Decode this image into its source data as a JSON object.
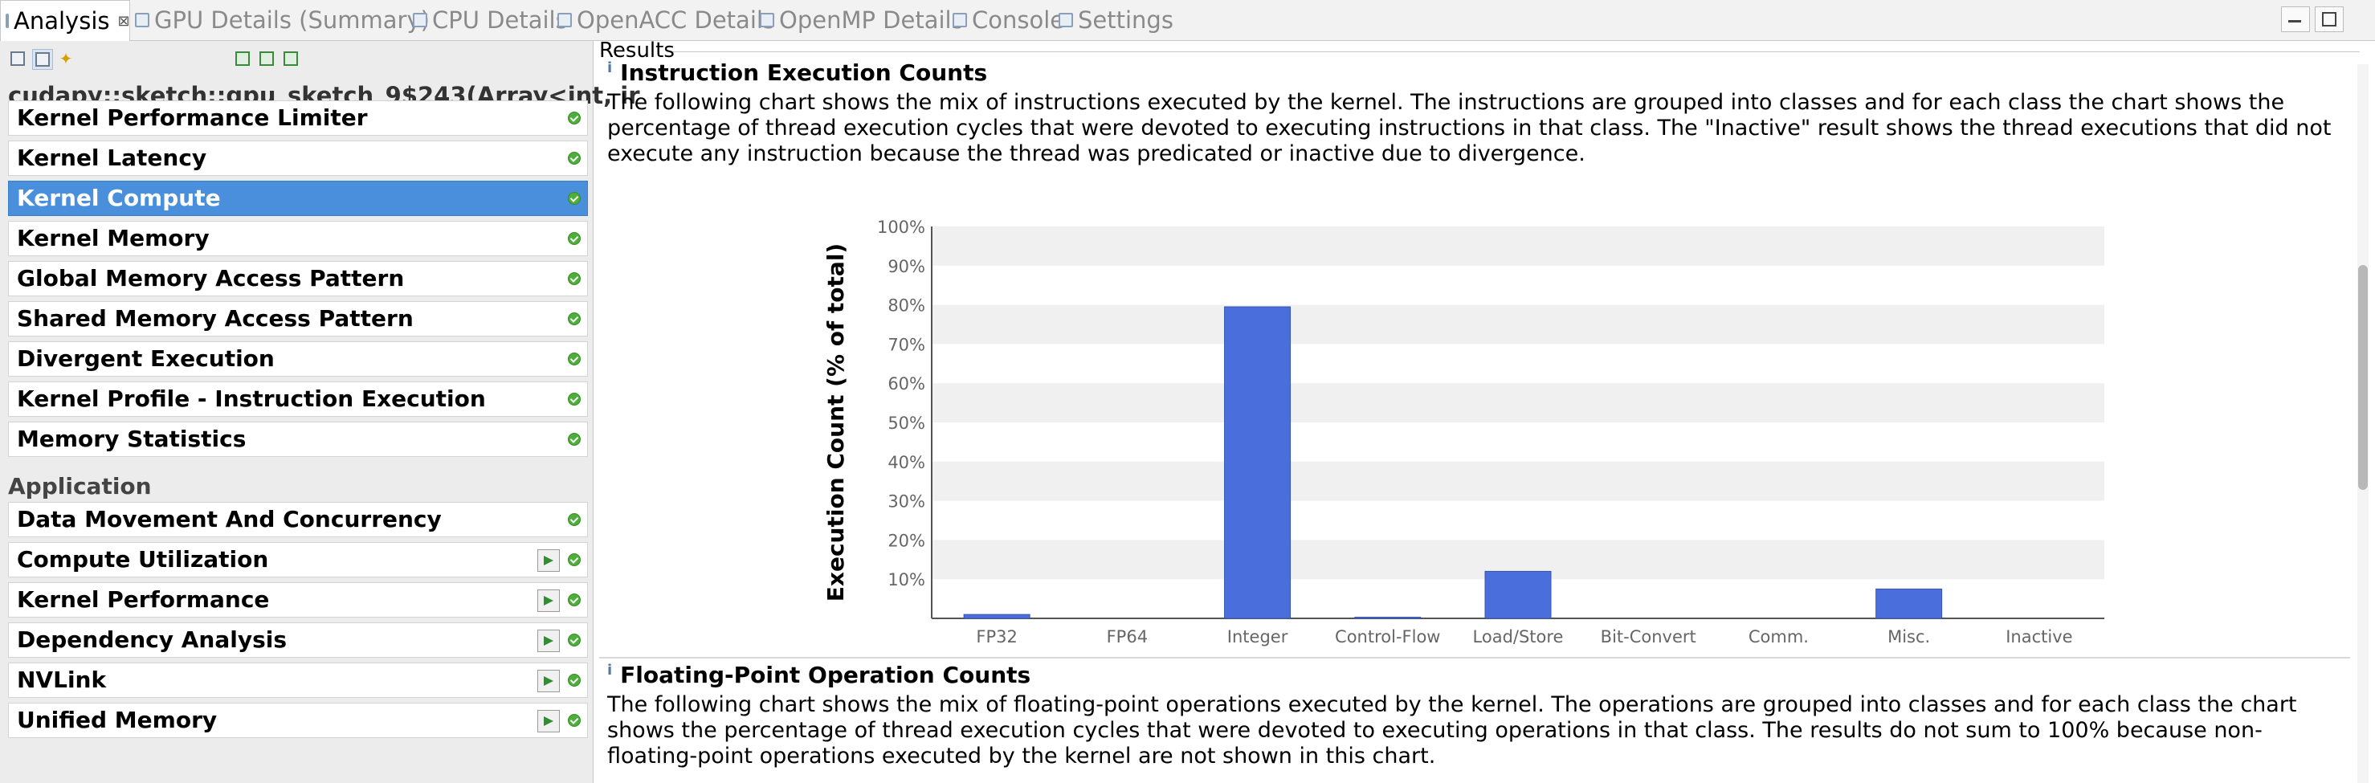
{
  "tabs": [
    {
      "label": "Analysis",
      "active": true,
      "close": "⊠"
    },
    {
      "label": "GPU Details (Summary)",
      "active": false
    },
    {
      "label": "CPU Details",
      "active": false
    },
    {
      "label": "OpenACC Details",
      "active": false
    },
    {
      "label": "OpenMP Details",
      "active": false
    },
    {
      "label": "Console",
      "active": false
    },
    {
      "label": "Settings",
      "active": false
    }
  ],
  "left": {
    "kernel_title": "cudapy::sketch::gpu_sketch_9$243(Array<int, ir",
    "kernel_items": [
      {
        "label": "Kernel Performance Limiter",
        "selected": false
      },
      {
        "label": "Kernel Latency",
        "selected": false
      },
      {
        "label": "Kernel Compute",
        "selected": true
      },
      {
        "label": "Kernel Memory",
        "selected": false
      },
      {
        "label": "Global Memory Access Pattern",
        "selected": false
      },
      {
        "label": "Shared Memory Access Pattern",
        "selected": false
      },
      {
        "label": "Divergent Execution",
        "selected": false
      },
      {
        "label": "Kernel Profile - Instruction Execution",
        "selected": false
      },
      {
        "label": "Memory Statistics",
        "selected": false
      }
    ],
    "application_header": "Application",
    "application_items": [
      {
        "label": "Data Movement And Concurrency",
        "run_button": false
      },
      {
        "label": "Compute Utilization",
        "run_button": true
      },
      {
        "label": "Kernel Performance",
        "run_button": true
      },
      {
        "label": "Dependency Analysis",
        "run_button": true
      },
      {
        "label": "NVLink",
        "run_button": true
      },
      {
        "label": "Unified Memory",
        "run_button": true
      }
    ]
  },
  "results": {
    "label": "Results",
    "sections": [
      {
        "title": "Instruction Execution Counts",
        "description": "The following chart shows the mix of instructions executed by the kernel. The instructions are grouped into classes and for each class the chart shows the percentage of thread execution cycles that were devoted to executing instructions in that class. The \"Inactive\" result shows the thread executions that did not execute any instruction because the thread was predicated or inactive due to divergence."
      },
      {
        "title": "Floating-Point Operation Counts",
        "description": "The following chart shows the mix of floating-point operations executed by the kernel. The operations are grouped into classes and for each class the chart shows the percentage of thread execution cycles that were devoted to executing operations in that class. The results do not sum to 100% because non-floating-point operations executed by the kernel are not shown in this chart."
      }
    ]
  },
  "chart_data": {
    "type": "bar",
    "categories": [
      "FP32",
      "FP64",
      "Integer",
      "Control-Flow",
      "Load/Store",
      "Bit-Convert",
      "Comm.",
      "Misc.",
      "Inactive"
    ],
    "values": [
      1,
      0,
      79.5,
      0.3,
      12,
      0,
      0,
      7.5,
      0
    ],
    "ylabel": "Execution Count (% of total)",
    "xlabel": "",
    "ylim": [
      0,
      100
    ],
    "yticks": [
      "10%",
      "20%",
      "30%",
      "40%",
      "50%",
      "60%",
      "70%",
      "80%",
      "90%",
      "100%"
    ],
    "grid": "alternating horizontal bands",
    "bar_color": "#4a6fdc",
    "band_color": "#f0f0f0"
  }
}
